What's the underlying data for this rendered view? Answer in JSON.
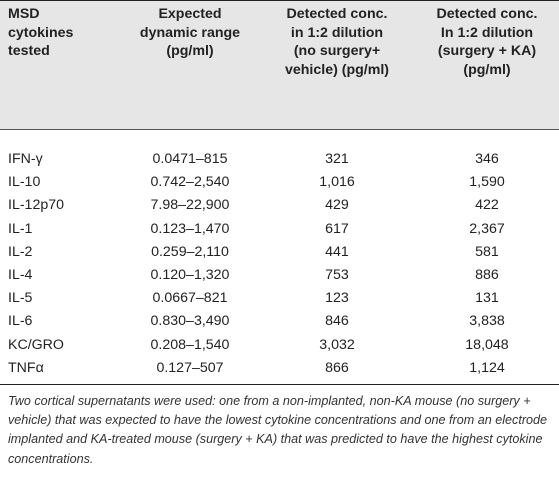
{
  "table": {
    "headers": [
      "MSD\ncytokines\ntested",
      "Expected\ndynamic range\n(pg/ml)",
      "Detected conc.\nin 1:2 dilution\n(no surgery+\nvehicle) (pg/ml)",
      "Detected conc.\nIn 1:2 dilution\n(surgery + KA)\n(pg/ml)"
    ],
    "rows": [
      [
        "IFN-γ",
        "0.0471–815",
        "321",
        "346"
      ],
      [
        "IL-10",
        "0.742–2,540",
        "1,016",
        "1,590"
      ],
      [
        "IL-12p70",
        "7.98–22,900",
        "429",
        "422"
      ],
      [
        "IL-1",
        "0.123–1,470",
        "617",
        "2,367"
      ],
      [
        "IL-2",
        "0.259–2,110",
        "441",
        "581"
      ],
      [
        "IL-4",
        "0.120–1,320",
        "753",
        "886"
      ],
      [
        "IL-5",
        "0.0667–821",
        "123",
        "131"
      ],
      [
        "IL-6",
        "0.830–3,490",
        "846",
        "3,838"
      ],
      [
        "KC/GRO",
        "0.208–1,540",
        "3,032",
        "18,048"
      ],
      [
        "TNFα",
        "0.127–507",
        "866",
        "1,124"
      ]
    ]
  },
  "footnote": "Two cortical supernatants were used: one from a non-implanted, non-KA mouse (no surgery + vehicle) that was expected to have the lowest cytokine concentrations and one from an electrode implanted and KA-treated mouse (surgery + KA) that was predicted to have the highest cytokine concentrations."
}
